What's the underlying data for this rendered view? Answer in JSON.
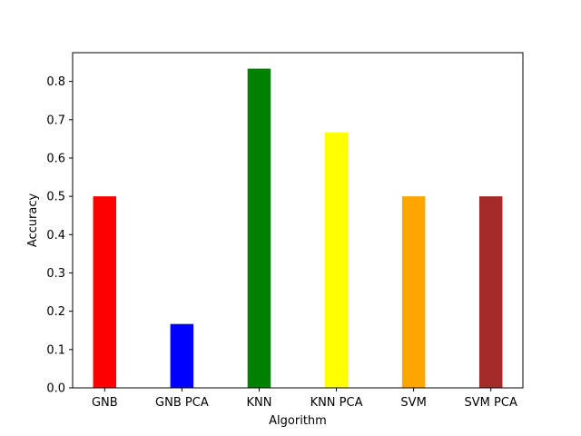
{
  "chart_data": {
    "type": "bar",
    "categories": [
      "GNB",
      "GNB PCA",
      "KNN",
      "KNN PCA",
      "SVM",
      "SVM PCA"
    ],
    "values": [
      0.5,
      0.1667,
      0.8333,
      0.6667,
      0.5,
      0.5
    ],
    "colors": [
      "#ff0000",
      "#0000ff",
      "#008000",
      "#ffff00",
      "#ffa500",
      "#a52a2a"
    ],
    "xlabel": "Algorithm",
    "ylabel": "Accuracy",
    "ylim": [
      0,
      0.875
    ],
    "yticks": [
      "0.0",
      "0.1",
      "0.2",
      "0.3",
      "0.4",
      "0.5",
      "0.6",
      "0.7",
      "0.8"
    ],
    "grid": false,
    "legend": false
  }
}
